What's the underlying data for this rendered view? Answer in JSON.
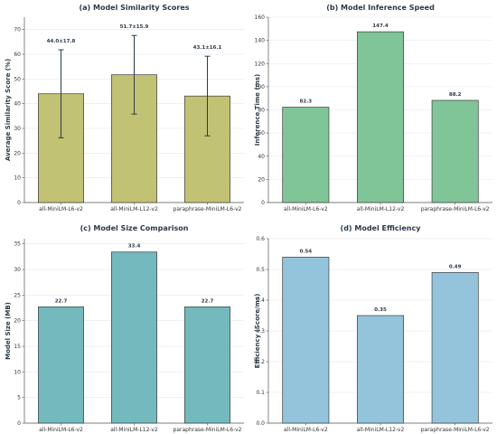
{
  "chart_data": [
    {
      "type": "bar",
      "title": "(a) Model Similarity Scores",
      "xlabel": "",
      "ylabel": "Average Similarity Score (%)",
      "categories": [
        "all-MiniLM-L6-v2",
        "all-MiniLM-L12-v2",
        "paraphrase-MiniLM-L6-v2"
      ],
      "values": [
        44.0,
        51.7,
        43.1
      ],
      "errors": [
        17.8,
        15.9,
        16.1
      ],
      "data_labels": [
        "44.0±17.8",
        "51.7±15.9",
        "43.1±16.1"
      ],
      "ylim": [
        0,
        75
      ],
      "yticks": [
        0,
        10,
        20,
        30,
        40,
        50,
        60,
        70
      ],
      "ytick_labels": [
        "0",
        "10",
        "20",
        "30",
        "40",
        "50",
        "60",
        "70"
      ],
      "color": "#c2c274",
      "grid": true
    },
    {
      "type": "bar",
      "title": "(b) Model Inference Speed",
      "xlabel": "",
      "ylabel": "Inference Time (ms)",
      "categories": [
        "all-MiniLM-L6-v2",
        "all-MiniLM-L12-v2",
        "paraphrase-MiniLM-L6-v2"
      ],
      "values": [
        82.3,
        147.4,
        88.2
      ],
      "data_labels": [
        "82.3",
        "147.4",
        "88.2"
      ],
      "ylim": [
        0,
        160
      ],
      "yticks": [
        0,
        20,
        40,
        60,
        80,
        100,
        120,
        140,
        160
      ],
      "ytick_labels": [
        "0",
        "20",
        "40",
        "60",
        "80",
        "100",
        "120",
        "140",
        "160"
      ],
      "color": "#80c597",
      "grid": true
    },
    {
      "type": "bar",
      "title": "(c) Model Size Comparison",
      "xlabel": "",
      "ylabel": "Model Size (MB)",
      "categories": [
        "all-MiniLM-L6-v2",
        "all-MiniLM-L12-v2",
        "paraphrase-MiniLM-L6-v2"
      ],
      "values": [
        22.7,
        33.4,
        22.7
      ],
      "data_labels": [
        "22.7",
        "33.4",
        "22.7"
      ],
      "ylim": [
        0,
        36
      ],
      "yticks": [
        0,
        5,
        10,
        15,
        20,
        25,
        30,
        35
      ],
      "ytick_labels": [
        "0",
        "5",
        "10",
        "15",
        "20",
        "25",
        "30",
        "35"
      ],
      "color": "#73b9bd",
      "grid": true
    },
    {
      "type": "bar",
      "title": "(d) Model Efficiency",
      "xlabel": "",
      "ylabel": "Efficiency (Score/ms)",
      "categories": [
        "all-MiniLM-L6-v2",
        "all-MiniLM-L12-v2",
        "paraphrase-MiniLM-L6-v2"
      ],
      "values": [
        0.54,
        0.35,
        0.49
      ],
      "data_labels": [
        "0.54",
        "0.35",
        "0.49"
      ],
      "ylim": [
        0,
        0.6
      ],
      "yticks": [
        0,
        0.1,
        0.2,
        0.3,
        0.4,
        0.5,
        0.6
      ],
      "ytick_labels": [
        "0.0",
        "0.1",
        "0.2",
        "0.3",
        "0.4",
        "0.5",
        "0.6"
      ],
      "color": "#93c4dc",
      "grid": true
    }
  ]
}
